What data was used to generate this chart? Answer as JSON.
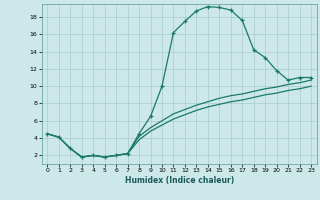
{
  "title": "",
  "xlabel": "Humidex (Indice chaleur)",
  "bg_color": "#cce8e8",
  "grid_color": "#aacccc",
  "line_color": "#1a7a6a",
  "xlim": [
    -0.5,
    23.5
  ],
  "ylim": [
    1,
    19.5
  ],
  "xticks": [
    0,
    1,
    2,
    3,
    4,
    5,
    6,
    7,
    8,
    9,
    10,
    11,
    12,
    13,
    14,
    15,
    16,
    17,
    18,
    19,
    20,
    21,
    22,
    23
  ],
  "yticks": [
    2,
    4,
    6,
    8,
    10,
    12,
    14,
    16,
    18
  ],
  "curve1_x": [
    0,
    1,
    2,
    3,
    4,
    5,
    6,
    7,
    8,
    9,
    10,
    11,
    12,
    13,
    14,
    15,
    16,
    17,
    18,
    19,
    20,
    21,
    22,
    23
  ],
  "curve1_y": [
    4.5,
    4.1,
    2.8,
    1.8,
    2.0,
    1.8,
    2.0,
    2.2,
    4.5,
    6.5,
    10.0,
    16.2,
    17.5,
    18.7,
    19.2,
    19.1,
    18.8,
    17.6,
    14.2,
    13.3,
    11.8,
    10.7,
    11.0,
    11.0
  ],
  "curve2_x": [
    0,
    1,
    2,
    3,
    4,
    5,
    6,
    7,
    8,
    9,
    10,
    11,
    12,
    13,
    14,
    15,
    16,
    17,
    18,
    19,
    20,
    21,
    22,
    23
  ],
  "curve2_y": [
    4.5,
    4.1,
    2.8,
    1.8,
    2.0,
    1.8,
    2.0,
    2.2,
    4.2,
    5.2,
    6.0,
    6.8,
    7.3,
    7.8,
    8.2,
    8.6,
    8.9,
    9.1,
    9.4,
    9.7,
    9.9,
    10.2,
    10.4,
    10.7
  ],
  "curve3_x": [
    0,
    1,
    2,
    3,
    4,
    5,
    6,
    7,
    8,
    9,
    10,
    11,
    12,
    13,
    14,
    15,
    16,
    17,
    18,
    19,
    20,
    21,
    22,
    23
  ],
  "curve3_y": [
    4.5,
    4.1,
    2.8,
    1.8,
    2.0,
    1.8,
    2.0,
    2.2,
    3.8,
    4.8,
    5.5,
    6.2,
    6.7,
    7.2,
    7.6,
    7.9,
    8.2,
    8.4,
    8.7,
    9.0,
    9.2,
    9.5,
    9.7,
    10.0
  ]
}
